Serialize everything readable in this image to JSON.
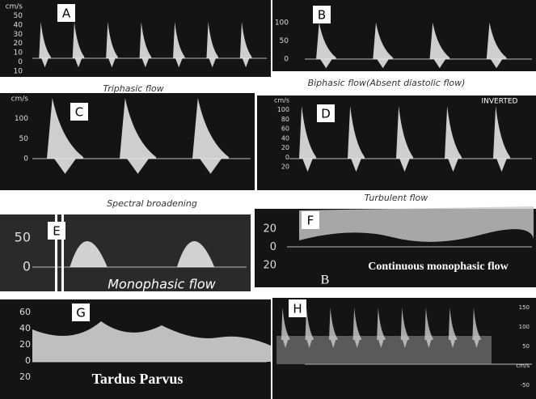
{
  "panels": [
    {
      "label": "A",
      "caption": "Triphasic flow",
      "axis": [
        "cm/s",
        "50",
        "40",
        "30",
        "20",
        "10",
        "0",
        "10"
      ]
    },
    {
      "label": "B",
      "caption": "Biphasic  flow(Absent diastolic flow)",
      "axis": [
        "100",
        "50",
        "0"
      ]
    },
    {
      "label": "C",
      "caption": "Spectral broadening",
      "axis": [
        "cm/s",
        "100",
        "50",
        "0"
      ]
    },
    {
      "label": "D",
      "caption": "Turbulent flow",
      "note": "INVERTED",
      "axis": [
        "cm/s",
        "100",
        "80",
        "60",
        "40",
        "20",
        "0",
        "20"
      ]
    },
    {
      "label": "E",
      "caption": "Monophasic flow",
      "axis": [
        "50",
        "0"
      ]
    },
    {
      "label": "F",
      "caption": "Continuous monophasic flow",
      "note": "B",
      "axis": [
        "20",
        "0",
        "20"
      ]
    },
    {
      "label": "G",
      "caption": "Tardus Parvus",
      "axis": [
        "60",
        "40",
        "20",
        "0",
        "20"
      ]
    },
    {
      "label": "H",
      "axis": [
        "150",
        "100",
        "50",
        "cm/s",
        "-50"
      ]
    }
  ]
}
